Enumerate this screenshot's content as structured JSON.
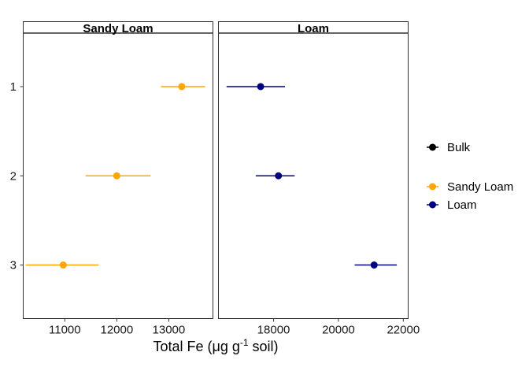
{
  "chart_data": {
    "type": "scatter",
    "xlabel_parts": {
      "prefix": "Total Fe (",
      "mu": "μ",
      "unit": "g g",
      "sup": "-1",
      "suffix": " soil)"
    },
    "y_categories": [
      "1",
      "2",
      "3"
    ],
    "colors": {
      "Bulk": "#000000",
      "Sandy Loam": "#FFA500",
      "Loam": "#000080"
    },
    "legend": {
      "placement": "right",
      "entries": [
        {
          "label": "Bulk",
          "color": "#000000"
        },
        {
          "label": "Sandy Loam",
          "color": "#FFA500"
        },
        {
          "label": "Loam",
          "color": "#000080"
        }
      ]
    },
    "grid": false,
    "panels": [
      {
        "title": "Sandy Loam",
        "color": "#FFA500",
        "xlim": [
          10200,
          13850
        ],
        "x_ticks": [
          11000,
          12000,
          13000
        ],
        "x_tick_labels": [
          "11000",
          "12000",
          "13000"
        ],
        "points": [
          {
            "y": "1",
            "x": 13250,
            "xmin": 12850,
            "xmax": 13700
          },
          {
            "y": "2",
            "x": 12000,
            "xmin": 11400,
            "xmax": 12650
          },
          {
            "y": "3",
            "x": 10970,
            "xmin": 10250,
            "xmax": 11650
          }
        ]
      },
      {
        "title": "Loam",
        "color": "#000080",
        "xlim": [
          16300,
          22150
        ],
        "x_ticks": [
          18000,
          20000,
          22000
        ],
        "x_tick_labels": [
          "18000",
          "20000",
          "22000"
        ],
        "points": [
          {
            "y": "1",
            "x": 17600,
            "xmin": 16550,
            "xmax": 18350
          },
          {
            "y": "2",
            "x": 18150,
            "xmin": 17450,
            "xmax": 18650
          },
          {
            "y": "3",
            "x": 21100,
            "xmin": 20500,
            "xmax": 21800
          }
        ]
      }
    ]
  }
}
